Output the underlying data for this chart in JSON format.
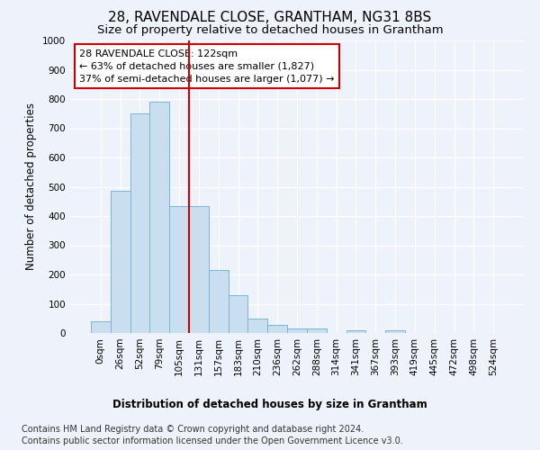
{
  "title": "28, RAVENDALE CLOSE, GRANTHAM, NG31 8BS",
  "subtitle": "Size of property relative to detached houses in Grantham",
  "xlabel": "Distribution of detached houses by size in Grantham",
  "ylabel": "Number of detached properties",
  "categories": [
    "0sqm",
    "26sqm",
    "52sqm",
    "79sqm",
    "105sqm",
    "131sqm",
    "157sqm",
    "183sqm",
    "210sqm",
    "236sqm",
    "262sqm",
    "288sqm",
    "314sqm",
    "341sqm",
    "367sqm",
    "393sqm",
    "419sqm",
    "445sqm",
    "472sqm",
    "498sqm",
    "524sqm"
  ],
  "bar_heights": [
    40,
    485,
    750,
    790,
    435,
    435,
    215,
    128,
    50,
    28,
    15,
    14,
    0,
    10,
    0,
    10,
    0,
    0,
    0,
    0,
    0
  ],
  "bar_color": "#c9dff0",
  "bar_edge_color": "#7ab4d8",
  "vline_color": "#cc0000",
  "annotation_line1": "28 RAVENDALE CLOSE: 122sqm",
  "annotation_line2": "← 63% of detached houses are smaller (1,827)",
  "annotation_line3": "37% of semi-detached houses are larger (1,077) →",
  "annotation_box_color": "#ffffff",
  "annotation_box_edge_color": "#cc0000",
  "ylim": [
    0,
    1000
  ],
  "yticks": [
    0,
    100,
    200,
    300,
    400,
    500,
    600,
    700,
    800,
    900,
    1000
  ],
  "footer_line1": "Contains HM Land Registry data © Crown copyright and database right 2024.",
  "footer_line2": "Contains public sector information licensed under the Open Government Licence v3.0.",
  "bg_color": "#eef2fa",
  "plot_bg_color": "#eef2fa",
  "grid_color": "#ffffff",
  "title_fontsize": 11,
  "subtitle_fontsize": 9.5,
  "axis_label_fontsize": 8.5,
  "tick_fontsize": 7.5,
  "annotation_fontsize": 8,
  "footer_fontsize": 7
}
